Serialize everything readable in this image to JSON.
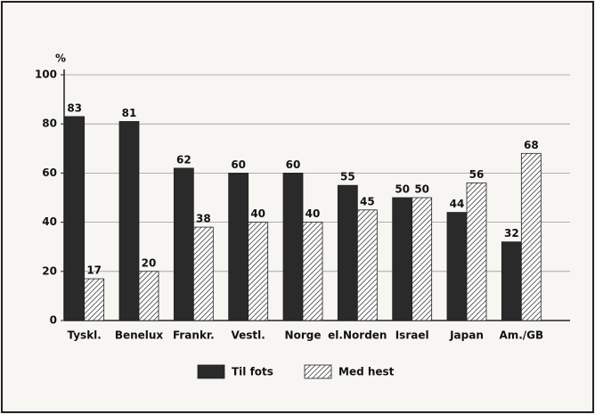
{
  "chart_data": {
    "type": "bar",
    "y_label": "%",
    "categories": [
      "Tyskl.",
      "Benelux",
      "Frankr.",
      "Vestl.",
      "Norge",
      "el.Norden",
      "Israel",
      "Japan",
      "Am./GB"
    ],
    "series": [
      {
        "name": "Til fots",
        "color": "#2a2a2a",
        "values": [
          83,
          81,
          62,
          60,
          60,
          55,
          50,
          44,
          32
        ]
      },
      {
        "name": "Med hest",
        "color": "#2a2a2a",
        "pattern": "hatch",
        "values": [
          17,
          20,
          38,
          40,
          40,
          45,
          50,
          56,
          68
        ]
      }
    ],
    "ylim": [
      0,
      100
    ],
    "yticks": [
      0,
      20,
      40,
      60,
      80,
      100
    ],
    "grid": true,
    "legend": "bottom"
  }
}
